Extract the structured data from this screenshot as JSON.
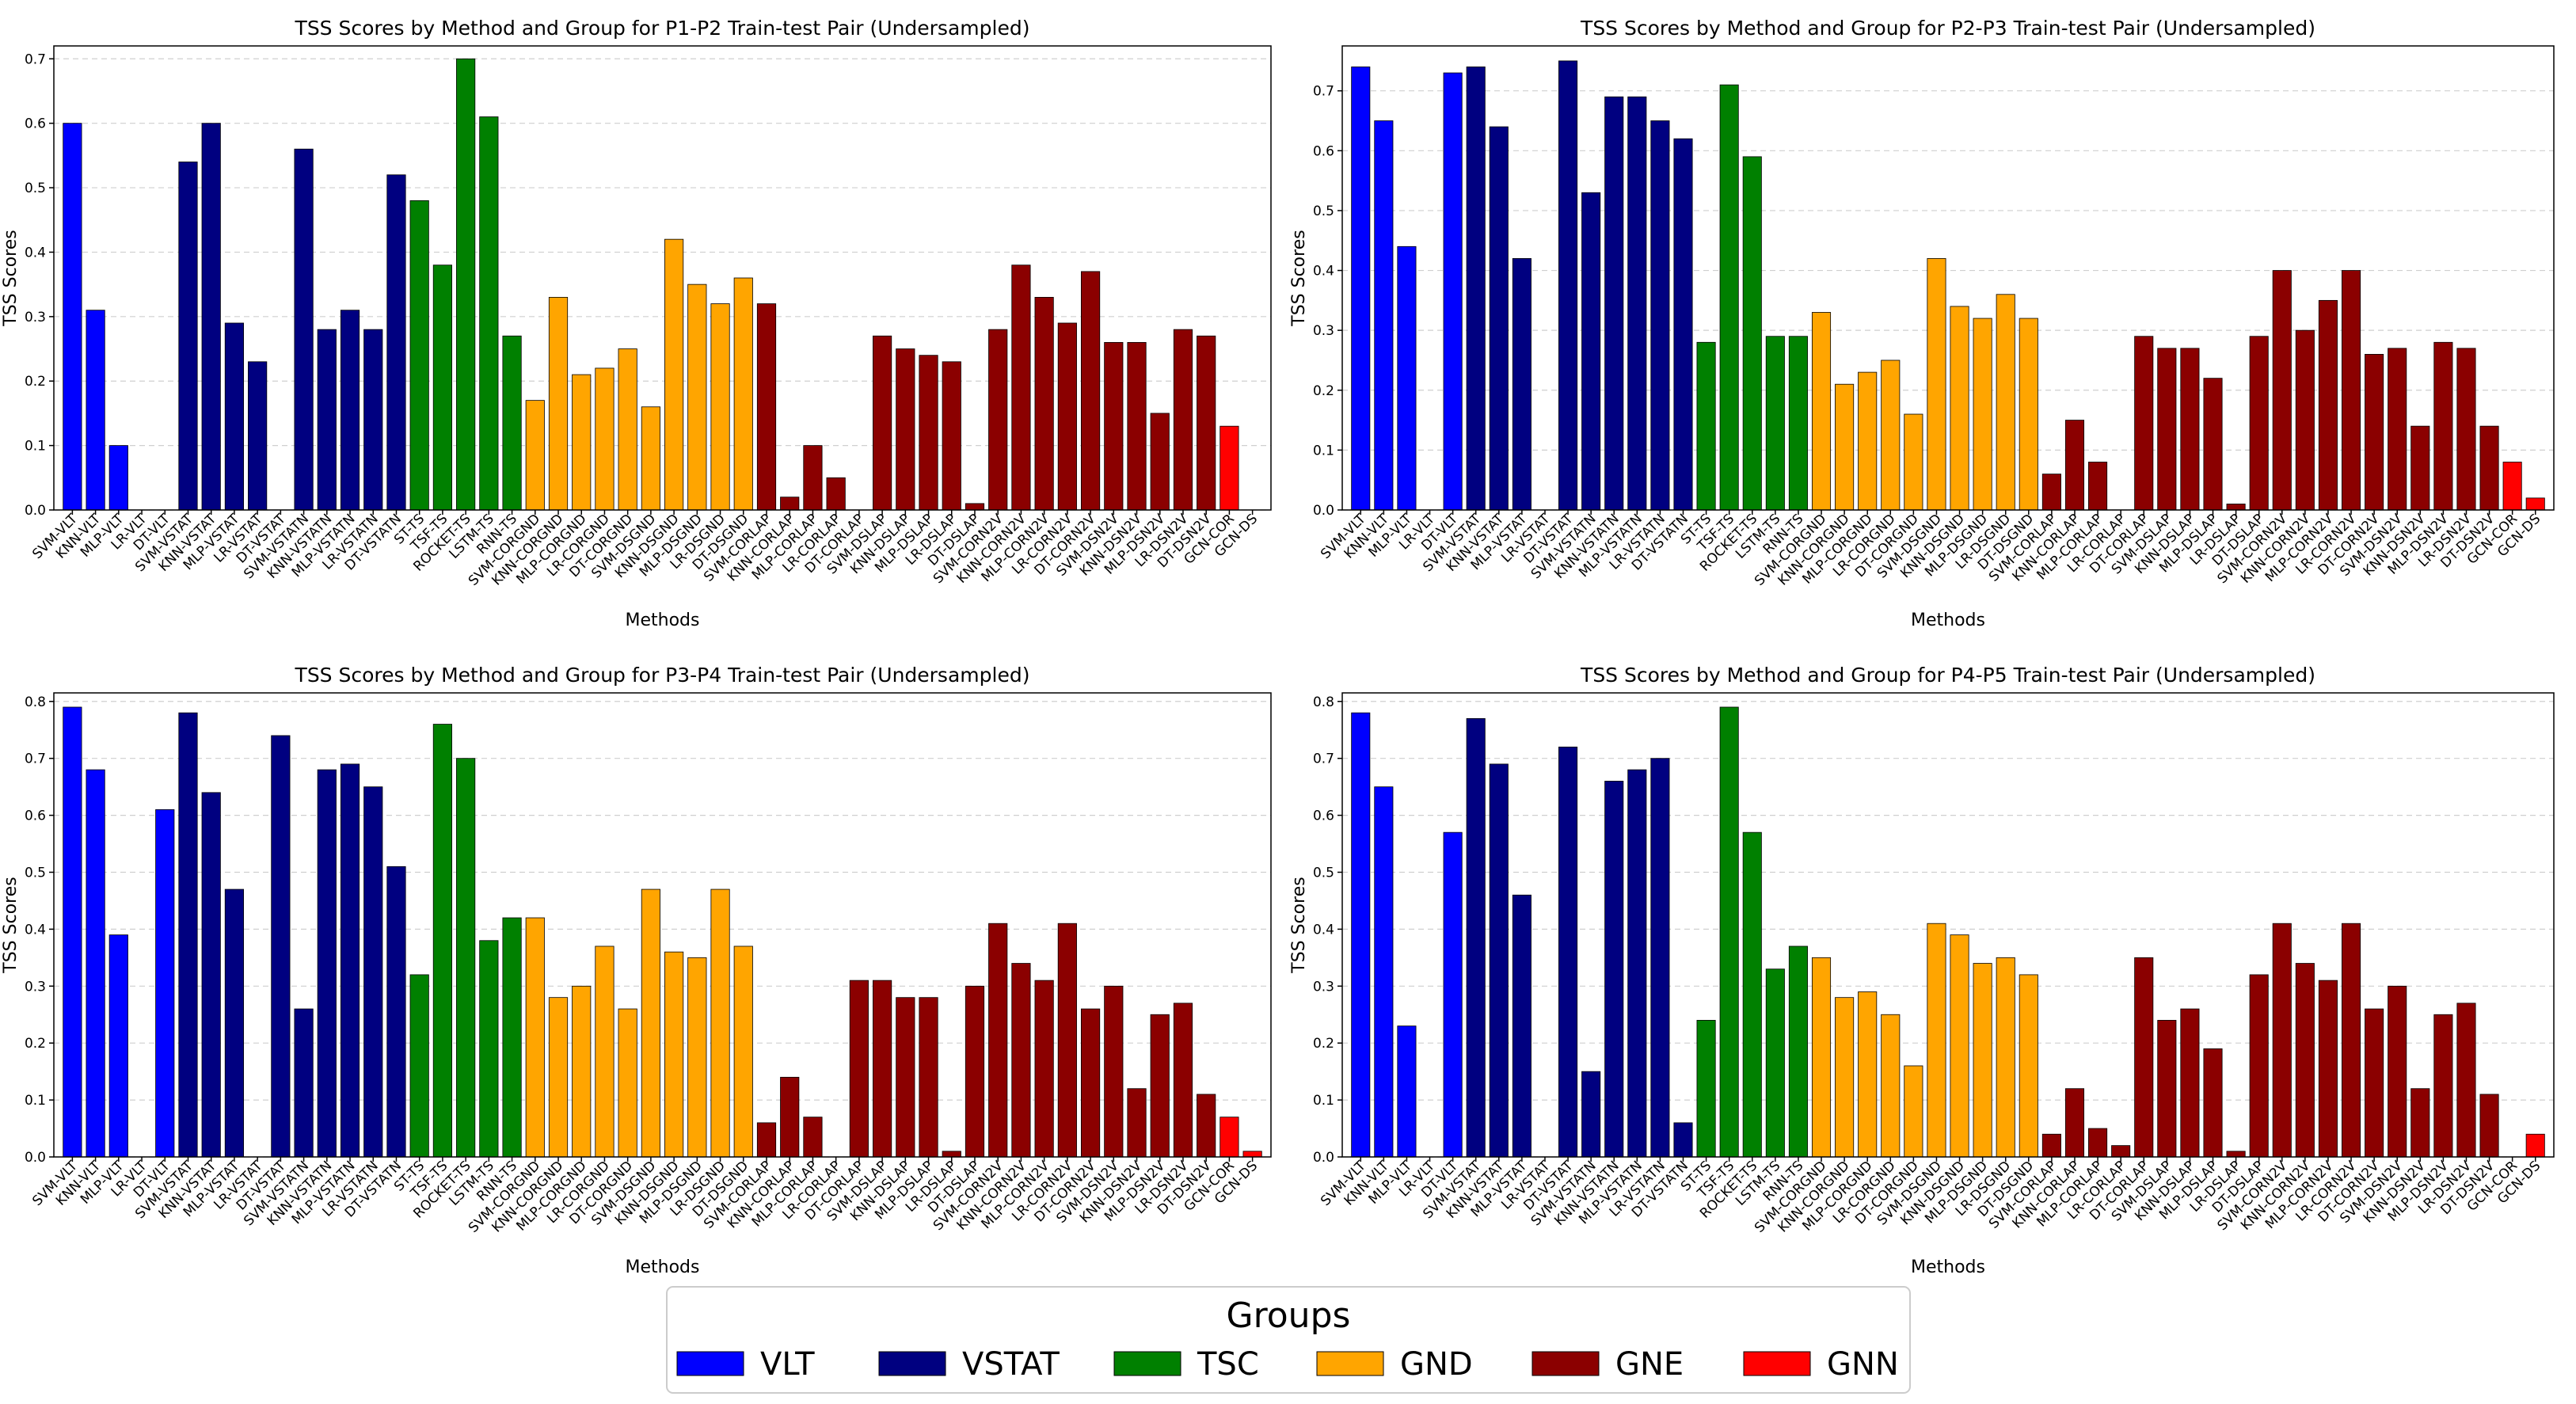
{
  "figure": {
    "legend": {
      "title": "Groups",
      "entries": [
        {
          "name": "VLT",
          "color": "#0000ff"
        },
        {
          "name": "VSTAT",
          "color": "#000080"
        },
        {
          "name": "TSC",
          "color": "#008000"
        },
        {
          "name": "GND",
          "color": "#ffa500"
        },
        {
          "name": "GNE",
          "color": "#8b0000"
        },
        {
          "name": "GNN",
          "color": "#ff0000"
        }
      ]
    }
  },
  "chart_data": [
    {
      "type": "bar",
      "title": "TSS Scores by Method and Group for P1-P2 Train-test Pair (Undersampled)",
      "xlabel": "Methods",
      "ylabel": "TSS Scores",
      "ylim": [
        0,
        0.72
      ],
      "yticks": [
        "0.0",
        "0.1",
        "0.2",
        "0.3",
        "0.4",
        "0.5",
        "0.6",
        "0.7"
      ],
      "grid": "horizontal dashed",
      "categories": [
        "SVM-VLT",
        "KNN-VLT",
        "MLP-VLT",
        "LR-VLT",
        "DT-VLT",
        "SVM-VSTAT",
        "KNN-VSTAT",
        "MLP-VSTAT",
        "LR-VSTAT",
        "DT-VSTAT",
        "SVM-VSTATN",
        "KNN-VSTATN",
        "MLP-VSTATN",
        "LR-VSTATN",
        "DT-VSTATN",
        "ST-TS",
        "TSF-TS",
        "ROCKET-TS",
        "LSTM-TS",
        "RNN-TS",
        "SVM-CORGND",
        "KNN-CORGND",
        "MLP-CORGND",
        "LR-CORGND",
        "DT-CORGND",
        "SVM-DSGND",
        "KNN-DSGND",
        "MLP-DSGND",
        "LR-DSGND",
        "DT-DSGND",
        "SVM-CORLAP",
        "KNN-CORLAP",
        "MLP-CORLAP",
        "LR-CORLAP",
        "DT-CORLAP",
        "SVM-DSLAP",
        "KNN-DSLAP",
        "MLP-DSLAP",
        "LR-DSLAP",
        "DT-DSLAP",
        "SVM-CORN2V",
        "KNN-CORN2V",
        "MLP-CORN2V",
        "LR-CORN2V",
        "DT-CORN2V",
        "SVM-DSN2V",
        "KNN-DSN2V",
        "MLP-DSN2V",
        "LR-DSN2V",
        "DT-DSN2V",
        "GCN-COR",
        "GCN-DS"
      ],
      "groups": [
        "VLT",
        "VLT",
        "VLT",
        "VLT",
        "VLT",
        "VSTAT",
        "VSTAT",
        "VSTAT",
        "VSTAT",
        "VSTAT",
        "VSTAT",
        "VSTAT",
        "VSTAT",
        "VSTAT",
        "VSTAT",
        "TSC",
        "TSC",
        "TSC",
        "TSC",
        "TSC",
        "GND",
        "GND",
        "GND",
        "GND",
        "GND",
        "GND",
        "GND",
        "GND",
        "GND",
        "GND",
        "GNE",
        "GNE",
        "GNE",
        "GNE",
        "GNE",
        "GNE",
        "GNE",
        "GNE",
        "GNE",
        "GNE",
        "GNE",
        "GNE",
        "GNE",
        "GNE",
        "GNE",
        "GNE",
        "GNE",
        "GNE",
        "GNE",
        "GNE",
        "GNN",
        "GNN"
      ],
      "values": [
        0.6,
        0.31,
        0.1,
        0.0,
        0.0,
        0.54,
        0.6,
        0.29,
        0.23,
        0.0,
        0.56,
        0.28,
        0.31,
        0.28,
        0.52,
        0.48,
        0.38,
        0.7,
        0.61,
        0.27,
        0.17,
        0.33,
        0.21,
        0.22,
        0.25,
        0.16,
        0.42,
        0.35,
        0.32,
        0.36,
        0.32,
        0.02,
        0.1,
        0.05,
        0.0,
        0.27,
        0.25,
        0.24,
        0.23,
        0.01,
        0.28,
        0.38,
        0.33,
        0.29,
        0.37,
        0.26,
        0.26,
        0.15,
        0.28,
        0.27,
        0.13,
        0.0
      ]
    },
    {
      "type": "bar",
      "title": "TSS Scores by Method and Group for P2-P3 Train-test Pair (Undersampled)",
      "xlabel": "Methods",
      "ylabel": "TSS Scores",
      "ylim": [
        0,
        0.775
      ],
      "yticks": [
        "0.0",
        "0.1",
        "0.2",
        "0.3",
        "0.4",
        "0.5",
        "0.6",
        "0.7"
      ],
      "grid": "horizontal dashed",
      "categories": [
        "SVM-VLT",
        "KNN-VLT",
        "MLP-VLT",
        "LR-VLT",
        "DT-VLT",
        "SVM-VSTAT",
        "KNN-VSTAT",
        "MLP-VSTAT",
        "LR-VSTAT",
        "DT-VSTAT",
        "SVM-VSTATN",
        "KNN-VSTATN",
        "MLP-VSTATN",
        "LR-VSTATN",
        "DT-VSTATN",
        "ST-TS",
        "TSF-TS",
        "ROCKET-TS",
        "LSTM-TS",
        "RNN-TS",
        "SVM-CORGND",
        "KNN-CORGND",
        "MLP-CORGND",
        "LR-CORGND",
        "DT-CORGND",
        "SVM-DSGND",
        "KNN-DSGND",
        "MLP-DSGND",
        "LR-DSGND",
        "DT-DSGND",
        "SVM-CORLAP",
        "KNN-CORLAP",
        "MLP-CORLAP",
        "LR-CORLAP",
        "DT-CORLAP",
        "SVM-DSLAP",
        "KNN-DSLAP",
        "MLP-DSLAP",
        "LR-DSLAP",
        "DT-DSLAP",
        "SVM-CORN2V",
        "KNN-CORN2V",
        "MLP-CORN2V",
        "LR-CORN2V",
        "DT-CORN2V",
        "SVM-DSN2V",
        "KNN-DSN2V",
        "MLP-DSN2V",
        "LR-DSN2V",
        "DT-DSN2V",
        "GCN-COR",
        "GCN-DS"
      ],
      "groups": [
        "VLT",
        "VLT",
        "VLT",
        "VLT",
        "VLT",
        "VSTAT",
        "VSTAT",
        "VSTAT",
        "VSTAT",
        "VSTAT",
        "VSTAT",
        "VSTAT",
        "VSTAT",
        "VSTAT",
        "VSTAT",
        "TSC",
        "TSC",
        "TSC",
        "TSC",
        "TSC",
        "GND",
        "GND",
        "GND",
        "GND",
        "GND",
        "GND",
        "GND",
        "GND",
        "GND",
        "GND",
        "GNE",
        "GNE",
        "GNE",
        "GNE",
        "GNE",
        "GNE",
        "GNE",
        "GNE",
        "GNE",
        "GNE",
        "GNE",
        "GNE",
        "GNE",
        "GNE",
        "GNE",
        "GNE",
        "GNE",
        "GNE",
        "GNE",
        "GNE",
        "GNN",
        "GNN"
      ],
      "values": [
        0.74,
        0.65,
        0.44,
        0.0,
        0.73,
        0.74,
        0.64,
        0.42,
        0.0,
        0.75,
        0.53,
        0.69,
        0.69,
        0.65,
        0.62,
        0.28,
        0.71,
        0.59,
        0.29,
        0.29,
        0.33,
        0.21,
        0.23,
        0.25,
        0.16,
        0.42,
        0.34,
        0.32,
        0.36,
        0.32,
        0.06,
        0.15,
        0.08,
        0.0,
        0.29,
        0.27,
        0.27,
        0.22,
        0.01,
        0.29,
        0.4,
        0.3,
        0.35,
        0.4,
        0.26,
        0.27,
        0.14,
        0.28,
        0.27,
        0.14,
        0.08,
        0.02
      ]
    },
    {
      "type": "bar",
      "title": "TSS Scores by Method and Group for P3-P4 Train-test Pair (Undersampled)",
      "xlabel": "Methods",
      "ylabel": "TSS Scores",
      "ylim": [
        0,
        0.815
      ],
      "yticks": [
        "0.0",
        "0.1",
        "0.2",
        "0.3",
        "0.4",
        "0.5",
        "0.6",
        "0.7",
        "0.8"
      ],
      "grid": "horizontal dashed",
      "categories": [
        "SVM-VLT",
        "KNN-VLT",
        "MLP-VLT",
        "LR-VLT",
        "DT-VLT",
        "SVM-VSTAT",
        "KNN-VSTAT",
        "MLP-VSTAT",
        "LR-VSTAT",
        "DT-VSTAT",
        "SVM-VSTATN",
        "KNN-VSTATN",
        "MLP-VSTATN",
        "LR-VSTATN",
        "DT-VSTATN",
        "ST-TS",
        "TSF-TS",
        "ROCKET-TS",
        "LSTM-TS",
        "RNN-TS",
        "SVM-CORGND",
        "KNN-CORGND",
        "MLP-CORGND",
        "LR-CORGND",
        "DT-CORGND",
        "SVM-DSGND",
        "KNN-DSGND",
        "MLP-DSGND",
        "LR-DSGND",
        "DT-DSGND",
        "SVM-CORLAP",
        "KNN-CORLAP",
        "MLP-CORLAP",
        "LR-CORLAP",
        "DT-CORLAP",
        "SVM-DSLAP",
        "KNN-DSLAP",
        "MLP-DSLAP",
        "LR-DSLAP",
        "DT-DSLAP",
        "SVM-CORN2V",
        "KNN-CORN2V",
        "MLP-CORN2V",
        "LR-CORN2V",
        "DT-CORN2V",
        "SVM-DSN2V",
        "KNN-DSN2V",
        "MLP-DSN2V",
        "LR-DSN2V",
        "DT-DSN2V",
        "GCN-COR",
        "GCN-DS"
      ],
      "groups": [
        "VLT",
        "VLT",
        "VLT",
        "VLT",
        "VLT",
        "VSTAT",
        "VSTAT",
        "VSTAT",
        "VSTAT",
        "VSTAT",
        "VSTAT",
        "VSTAT",
        "VSTAT",
        "VSTAT",
        "VSTAT",
        "TSC",
        "TSC",
        "TSC",
        "TSC",
        "TSC",
        "GND",
        "GND",
        "GND",
        "GND",
        "GND",
        "GND",
        "GND",
        "GND",
        "GND",
        "GND",
        "GNE",
        "GNE",
        "GNE",
        "GNE",
        "GNE",
        "GNE",
        "GNE",
        "GNE",
        "GNE",
        "GNE",
        "GNE",
        "GNE",
        "GNE",
        "GNE",
        "GNE",
        "GNE",
        "GNE",
        "GNE",
        "GNE",
        "GNE",
        "GNN",
        "GNN"
      ],
      "values": [
        0.79,
        0.68,
        0.39,
        0.0,
        0.61,
        0.78,
        0.64,
        0.47,
        0.0,
        0.74,
        0.26,
        0.68,
        0.69,
        0.65,
        0.51,
        0.32,
        0.76,
        0.7,
        0.38,
        0.42,
        0.42,
        0.28,
        0.3,
        0.37,
        0.26,
        0.47,
        0.36,
        0.35,
        0.47,
        0.37,
        0.06,
        0.14,
        0.07,
        0.0,
        0.31,
        0.31,
        0.28,
        0.28,
        0.01,
        0.3,
        0.41,
        0.34,
        0.31,
        0.41,
        0.26,
        0.3,
        0.12,
        0.25,
        0.27,
        0.11,
        0.07,
        0.01
      ]
    },
    {
      "type": "bar",
      "title": "TSS Scores by Method and Group for P4-P5 Train-test Pair (Undersampled)",
      "xlabel": "Methods",
      "ylabel": "TSS Scores",
      "ylim": [
        0,
        0.815
      ],
      "yticks": [
        "0.0",
        "0.1",
        "0.2",
        "0.3",
        "0.4",
        "0.5",
        "0.6",
        "0.7",
        "0.8"
      ],
      "grid": "horizontal dashed",
      "categories": [
        "SVM-VLT",
        "KNN-VLT",
        "MLP-VLT",
        "LR-VLT",
        "DT-VLT",
        "SVM-VSTAT",
        "KNN-VSTAT",
        "MLP-VSTAT",
        "LR-VSTAT",
        "DT-VSTAT",
        "SVM-VSTATN",
        "KNN-VSTATN",
        "MLP-VSTATN",
        "LR-VSTATN",
        "DT-VSTATN",
        "ST-TS",
        "TSF-TS",
        "ROCKET-TS",
        "LSTM-TS",
        "RNN-TS",
        "SVM-CORGND",
        "KNN-CORGND",
        "MLP-CORGND",
        "LR-CORGND",
        "DT-CORGND",
        "SVM-DSGND",
        "KNN-DSGND",
        "MLP-DSGND",
        "LR-DSGND",
        "DT-DSGND",
        "SVM-CORLAP",
        "KNN-CORLAP",
        "MLP-CORLAP",
        "LR-CORLAP",
        "DT-CORLAP",
        "SVM-DSLAP",
        "KNN-DSLAP",
        "MLP-DSLAP",
        "LR-DSLAP",
        "DT-DSLAP",
        "SVM-CORN2V",
        "KNN-CORN2V",
        "MLP-CORN2V",
        "LR-CORN2V",
        "DT-CORN2V",
        "SVM-DSN2V",
        "KNN-DSN2V",
        "MLP-DSN2V",
        "LR-DSN2V",
        "DT-DSN2V",
        "GCN-COR",
        "GCN-DS"
      ],
      "groups": [
        "VLT",
        "VLT",
        "VLT",
        "VLT",
        "VLT",
        "VSTAT",
        "VSTAT",
        "VSTAT",
        "VSTAT",
        "VSTAT",
        "VSTAT",
        "VSTAT",
        "VSTAT",
        "VSTAT",
        "VSTAT",
        "TSC",
        "TSC",
        "TSC",
        "TSC",
        "TSC",
        "GND",
        "GND",
        "GND",
        "GND",
        "GND",
        "GND",
        "GND",
        "GND",
        "GND",
        "GND",
        "GNE",
        "GNE",
        "GNE",
        "GNE",
        "GNE",
        "GNE",
        "GNE",
        "GNE",
        "GNE",
        "GNE",
        "GNE",
        "GNE",
        "GNE",
        "GNE",
        "GNE",
        "GNE",
        "GNE",
        "GNE",
        "GNE",
        "GNE",
        "GNN",
        "GNN"
      ],
      "values": [
        0.78,
        0.65,
        0.23,
        0.0,
        0.57,
        0.77,
        0.69,
        0.46,
        0.0,
        0.72,
        0.15,
        0.66,
        0.68,
        0.7,
        0.06,
        0.24,
        0.79,
        0.57,
        0.33,
        0.37,
        0.35,
        0.28,
        0.29,
        0.25,
        0.16,
        0.41,
        0.39,
        0.34,
        0.35,
        0.32,
        0.04,
        0.12,
        0.05,
        0.02,
        0.35,
        0.24,
        0.26,
        0.19,
        0.01,
        0.32,
        0.41,
        0.34,
        0.31,
        0.41,
        0.26,
        0.3,
        0.12,
        0.25,
        0.27,
        0.11,
        0.0,
        0.04
      ]
    }
  ]
}
